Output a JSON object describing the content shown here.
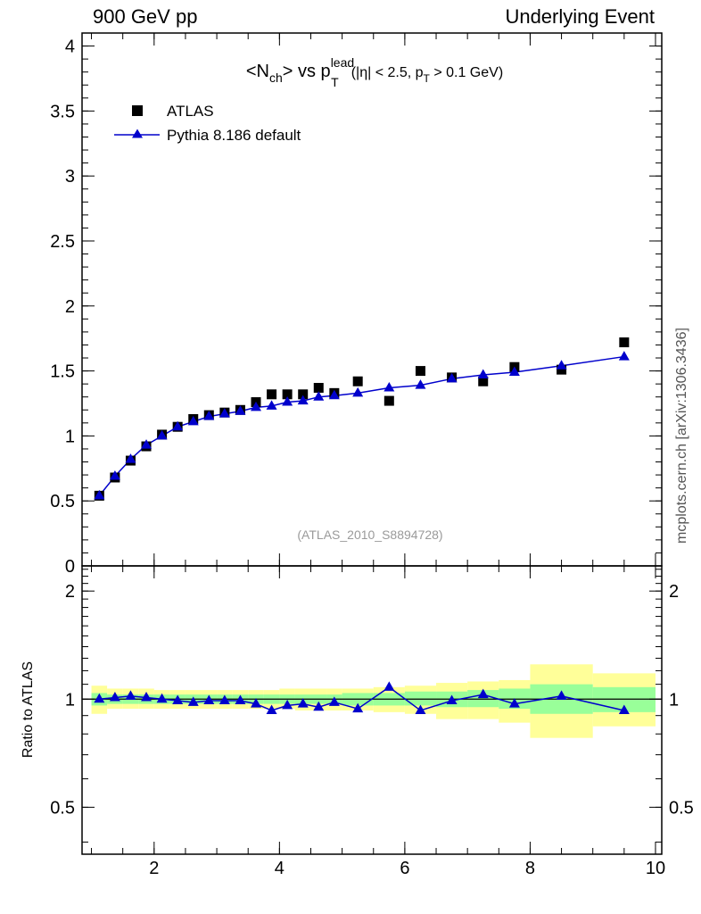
{
  "header": {
    "left": "900 GeV pp",
    "right": "Underlying Event"
  },
  "side_label": "mcplots.cern.ch [arXiv:1306.3436]",
  "chart_data": [
    {
      "type": "scatter",
      "title_parts": {
        "a": "<N",
        "b": "ch",
        "c": "> vs p",
        "d": "lead",
        "e": "T",
        "f": "(|η| < 2.5, p",
        "g": "T",
        "h": " > 0.1 GeV)"
      },
      "watermark": "(ATLAS_2010_S8894728)",
      "xlim": [
        0.85,
        10.1
      ],
      "ylim": [
        0,
        4.1
      ],
      "x_ticks": [
        2,
        4,
        6,
        8,
        10
      ],
      "y_ticks": [
        0,
        0.5,
        1,
        1.5,
        2,
        2.5,
        3,
        3.5,
        4
      ],
      "y_tick_labels": [
        "0",
        "0.5",
        "1",
        "1.5",
        "2",
        "2.5",
        "3",
        "3.5",
        "4"
      ],
      "legend": {
        "placement": "top-left",
        "data_label": "ATLAS",
        "mc_label": "Pythia 8.186 default"
      },
      "x": [
        1.125,
        1.375,
        1.625,
        1.875,
        2.125,
        2.375,
        2.625,
        2.875,
        3.125,
        3.375,
        3.625,
        3.875,
        4.125,
        4.375,
        4.625,
        4.875,
        5.25,
        5.75,
        6.25,
        6.75,
        7.25,
        7.75,
        8.5,
        9.5
      ],
      "series": [
        {
          "name": "ATLAS",
          "color": "#000000",
          "marker": "square",
          "values": [
            0.54,
            0.68,
            0.81,
            0.92,
            1.01,
            1.07,
            1.13,
            1.16,
            1.18,
            1.2,
            1.26,
            1.32,
            1.32,
            1.32,
            1.37,
            1.33,
            1.42,
            1.27,
            1.5,
            1.45,
            1.42,
            1.53,
            1.51,
            1.72
          ]
        },
        {
          "name": "Pythia 8.186 default",
          "color": "#0000cc",
          "marker": "triangle",
          "values": [
            0.54,
            0.69,
            0.82,
            0.93,
            1.0,
            1.07,
            1.11,
            1.15,
            1.17,
            1.19,
            1.22,
            1.23,
            1.26,
            1.27,
            1.3,
            1.31,
            1.33,
            1.37,
            1.39,
            1.44,
            1.47,
            1.49,
            1.54,
            1.61
          ]
        }
      ]
    },
    {
      "type": "line",
      "ylabel": "Ratio to ATLAS",
      "xlim": [
        0.85,
        10.1
      ],
      "ylim": [
        0.37,
        2.35
      ],
      "log_y": true,
      "x_ticks": [
        2,
        4,
        6,
        8,
        10
      ],
      "x_tick_labels": [
        "2",
        "4",
        "6",
        "8",
        "10"
      ],
      "y_ticks": [
        0.5,
        1,
        2
      ],
      "y_tick_labels": [
        "0.5",
        "1",
        "2"
      ],
      "bins": [
        {
          "lo": 1.0,
          "hi": 1.25,
          "inner": [
            0.96,
            1.04
          ],
          "outer": [
            0.91,
            1.09
          ]
        },
        {
          "lo": 1.25,
          "hi": 1.5,
          "inner": [
            0.97,
            1.03
          ],
          "outer": [
            0.94,
            1.07
          ]
        },
        {
          "lo": 1.5,
          "hi": 1.75,
          "inner": [
            0.97,
            1.03
          ],
          "outer": [
            0.94,
            1.07
          ]
        },
        {
          "lo": 1.75,
          "hi": 2.0,
          "inner": [
            0.97,
            1.03
          ],
          "outer": [
            0.94,
            1.07
          ]
        },
        {
          "lo": 2.0,
          "hi": 2.25,
          "inner": [
            0.97,
            1.03
          ],
          "outer": [
            0.94,
            1.06
          ]
        },
        {
          "lo": 2.25,
          "hi": 2.5,
          "inner": [
            0.97,
            1.03
          ],
          "outer": [
            0.94,
            1.06
          ]
        },
        {
          "lo": 2.5,
          "hi": 2.75,
          "inner": [
            0.97,
            1.03
          ],
          "outer": [
            0.94,
            1.06
          ]
        },
        {
          "lo": 2.75,
          "hi": 3.0,
          "inner": [
            0.97,
            1.03
          ],
          "outer": [
            0.94,
            1.06
          ]
        },
        {
          "lo": 3.0,
          "hi": 3.25,
          "inner": [
            0.97,
            1.03
          ],
          "outer": [
            0.94,
            1.06
          ]
        },
        {
          "lo": 3.25,
          "hi": 3.5,
          "inner": [
            0.97,
            1.03
          ],
          "outer": [
            0.94,
            1.06
          ]
        },
        {
          "lo": 3.5,
          "hi": 3.75,
          "inner": [
            0.97,
            1.03
          ],
          "outer": [
            0.94,
            1.06
          ]
        },
        {
          "lo": 3.75,
          "hi": 4.0,
          "inner": [
            0.97,
            1.03
          ],
          "outer": [
            0.94,
            1.06
          ]
        },
        {
          "lo": 4.0,
          "hi": 4.25,
          "inner": [
            0.97,
            1.03
          ],
          "outer": [
            0.94,
            1.07
          ]
        },
        {
          "lo": 4.25,
          "hi": 4.5,
          "inner": [
            0.97,
            1.03
          ],
          "outer": [
            0.93,
            1.07
          ]
        },
        {
          "lo": 4.5,
          "hi": 4.75,
          "inner": [
            0.97,
            1.03
          ],
          "outer": [
            0.93,
            1.07
          ]
        },
        {
          "lo": 4.75,
          "hi": 5.0,
          "inner": [
            0.97,
            1.03
          ],
          "outer": [
            0.93,
            1.07
          ]
        },
        {
          "lo": 5.0,
          "hi": 5.5,
          "inner": [
            0.96,
            1.04
          ],
          "outer": [
            0.93,
            1.07
          ]
        },
        {
          "lo": 5.5,
          "hi": 6.0,
          "inner": [
            0.96,
            1.04
          ],
          "outer": [
            0.92,
            1.08
          ]
        },
        {
          "lo": 6.0,
          "hi": 6.5,
          "inner": [
            0.96,
            1.05
          ],
          "outer": [
            0.91,
            1.09
          ]
        },
        {
          "lo": 6.5,
          "hi": 7.0,
          "inner": [
            0.95,
            1.05
          ],
          "outer": [
            0.88,
            1.11
          ]
        },
        {
          "lo": 7.0,
          "hi": 7.5,
          "inner": [
            0.95,
            1.06
          ],
          "outer": [
            0.88,
            1.12
          ]
        },
        {
          "lo": 7.5,
          "hi": 8.0,
          "inner": [
            0.94,
            1.07
          ],
          "outer": [
            0.86,
            1.13
          ]
        },
        {
          "lo": 8.0,
          "hi": 9.0,
          "inner": [
            0.91,
            1.1
          ],
          "outer": [
            0.78,
            1.25
          ]
        },
        {
          "lo": 9.0,
          "hi": 10.0,
          "inner": [
            0.92,
            1.08
          ],
          "outer": [
            0.84,
            1.18
          ]
        }
      ],
      "band_colors": {
        "inner": "#99ff99",
        "outer": "#ffff99"
      },
      "reference": 1,
      "series": [
        {
          "name": "Pythia 8.186 default",
          "color": "#0000cc",
          "marker": "triangle",
          "x": [
            1.125,
            1.375,
            1.625,
            1.875,
            2.125,
            2.375,
            2.625,
            2.875,
            3.125,
            3.375,
            3.625,
            3.875,
            4.125,
            4.375,
            4.625,
            4.875,
            5.25,
            5.75,
            6.25,
            6.75,
            7.25,
            7.75,
            8.5,
            9.5
          ],
          "values": [
            1.0,
            1.01,
            1.02,
            1.01,
            1.0,
            0.99,
            0.98,
            0.99,
            0.99,
            0.99,
            0.97,
            0.93,
            0.96,
            0.97,
            0.95,
            0.98,
            0.94,
            1.08,
            0.93,
            0.99,
            1.03,
            0.97,
            1.02,
            0.93
          ]
        }
      ]
    }
  ]
}
